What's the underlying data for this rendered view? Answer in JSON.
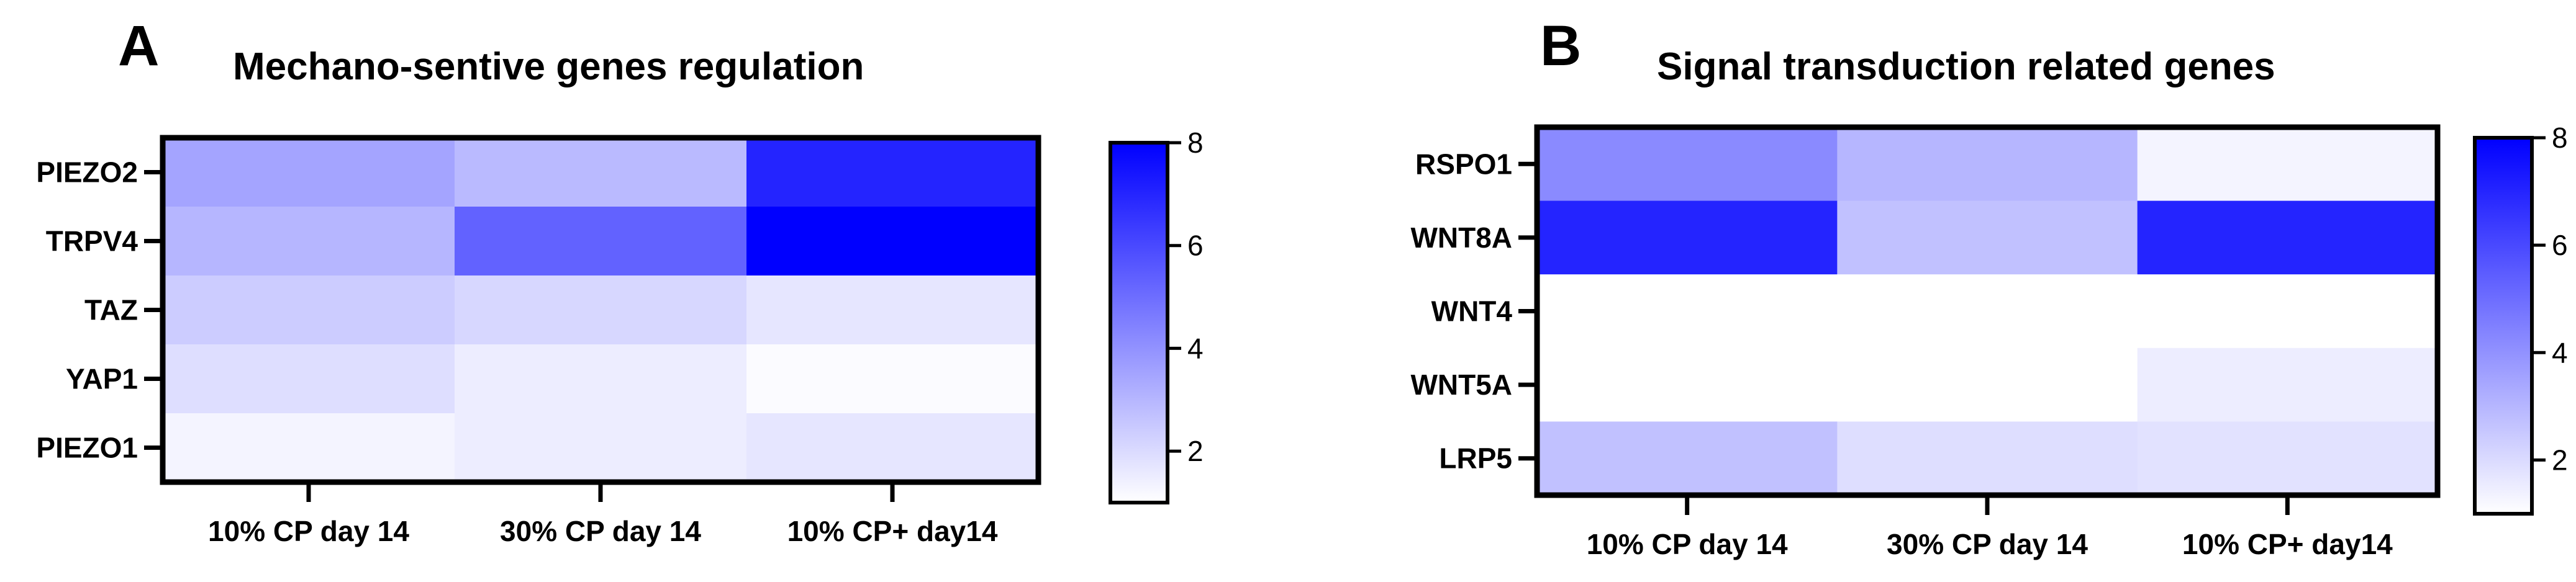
{
  "colors": {
    "low": "#ffffff",
    "high": "#0000ff",
    "frame": "#000000"
  },
  "chart_data": [
    {
      "type": "heatmap",
      "panel_label": "A",
      "title": "Mechano-sentive genes regulation",
      "x_categories": [
        "10% CP day 14",
        "30% CP day 14",
        "10% CP+ day14"
      ],
      "y_categories": [
        "PIEZO2",
        "TRPV4",
        "TAZ",
        "YAP1",
        "PIEZO1"
      ],
      "values": [
        [
          3.5,
          2.9,
          7.0
        ],
        [
          3.0,
          5.3,
          8.0
        ],
        [
          2.4,
          2.1,
          1.7
        ],
        [
          1.9,
          1.5,
          1.1
        ],
        [
          1.3,
          1.5,
          1.7
        ]
      ],
      "colorbar": {
        "min": 1,
        "max": 8,
        "ticks": [
          2,
          4,
          6,
          8
        ]
      },
      "xlabel": "",
      "ylabel": ""
    },
    {
      "type": "heatmap",
      "panel_label": "B",
      "title": "Signal transduction related genes",
      "x_categories": [
        "10% CP day 14",
        "30% CP day 14",
        "10% CP+ day14"
      ],
      "y_categories": [
        "RSPO1",
        "WNT8A",
        "WNT4",
        "WNT5A",
        "LRP5"
      ],
      "values": [
        [
          4.2,
          3.0,
          1.3
        ],
        [
          7.0,
          2.7,
          7.0
        ],
        [
          1.0,
          1.0,
          1.0
        ],
        [
          1.0,
          1.0,
          1.5
        ],
        [
          2.7,
          1.9,
          1.8
        ]
      ],
      "colorbar": {
        "min": 1,
        "max": 8,
        "ticks": [
          2,
          4,
          6,
          8
        ]
      },
      "xlabel": "",
      "ylabel": ""
    }
  ]
}
